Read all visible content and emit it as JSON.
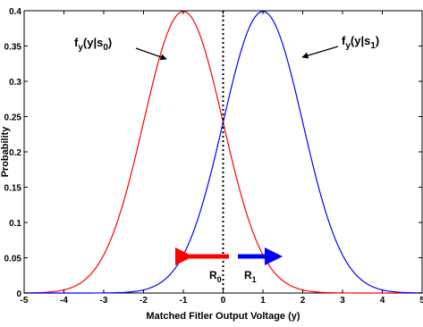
{
  "chart_data": {
    "type": "line",
    "xlabel": "Matched Fitler Output Voltage (y)",
    "ylabel": "Probability",
    "xlim": [
      -5,
      5
    ],
    "ylim": [
      0,
      0.4
    ],
    "xticks": [
      -5,
      -4,
      -3,
      -2,
      -1,
      0,
      1,
      2,
      3,
      4,
      5
    ],
    "yticks": [
      0,
      0.05,
      0.1,
      0.15,
      0.2,
      0.25,
      0.3,
      0.35,
      0.4
    ],
    "grid": false,
    "series": [
      {
        "color": "#ff0000",
        "mean": -1,
        "std": 1,
        "x": [
          -5,
          -4.5,
          -4,
          -3.5,
          -3,
          -2.5,
          -2,
          -1.5,
          -1,
          -0.5,
          0,
          0.5,
          1,
          1.5,
          2,
          2.5,
          3,
          3.5,
          4,
          4.5,
          5
        ],
        "values": [
          0.0001,
          0.0009,
          0.0044,
          0.0175,
          0.054,
          0.1295,
          0.242,
          0.3521,
          0.3989,
          0.3521,
          0.242,
          0.1295,
          0.054,
          0.0175,
          0.0044,
          0.0009,
          0.0001,
          0.0,
          0.0,
          0.0,
          0.0
        ]
      },
      {
        "color": "#0000ff",
        "mean": 1,
        "std": 1,
        "x": [
          -5,
          -4.5,
          -4,
          -3.5,
          -3,
          -2.5,
          -2,
          -1.5,
          -1,
          -0.5,
          0,
          0.5,
          1,
          1.5,
          2,
          2.5,
          3,
          3.5,
          4,
          4.5,
          5
        ],
        "values": [
          0.0,
          0.0,
          0.0,
          0.0,
          0.0001,
          0.0009,
          0.0044,
          0.0175,
          0.054,
          0.1295,
          0.242,
          0.3521,
          0.3989,
          0.3521,
          0.242,
          0.1295,
          0.054,
          0.0175,
          0.0044,
          0.0009,
          0.0001
        ]
      }
    ],
    "threshold": {
      "x": 0,
      "style": "dotted",
      "color": "#000000"
    },
    "annotations": {
      "left_label": {
        "main": "f",
        "sub": "y",
        "mid": "(y|s",
        "sub2": "0",
        "end": ")"
      },
      "right_label": {
        "main": "f",
        "sub": "y",
        "mid": "(y|s",
        "sub2": "1",
        "end": ")"
      },
      "region_left": {
        "main": "R",
        "sub": "0",
        "color": "#ff0000"
      },
      "region_right": {
        "main": "R",
        "sub": "1",
        "color": "#0000ff"
      }
    }
  }
}
